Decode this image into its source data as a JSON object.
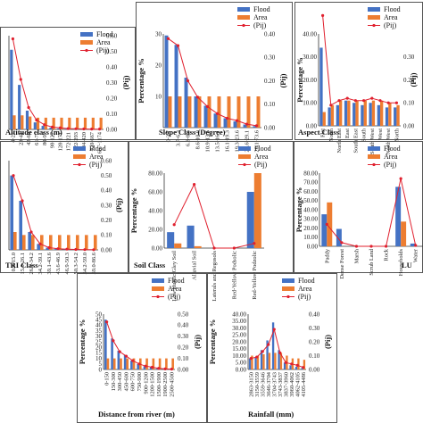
{
  "colors": {
    "flood": "#4472C4",
    "area": "#ED7D31",
    "pij": "#E0202E"
  },
  "chart_data": [
    {
      "type": "bar",
      "title": "",
      "xlabel": "Altitude class (m)",
      "ylabel": "",
      "y2label": "(Pij)",
      "legend": [
        "Flood",
        "Area",
        "(Pij)"
      ],
      "legend_position": "top-right",
      "ylim": [
        0,
        80
      ],
      "y2lim": [
        0,
        0.6
      ],
      "yticks": [
        "",
        "",
        "",
        "",
        ""
      ],
      "y2ticks": [
        "0.00",
        "0.10",
        "0.20",
        "0.30",
        "0.40",
        "0.50",
        "0.60"
      ],
      "categories": [
        "4-22",
        "23-41",
        "42-60",
        "61-79",
        "80-97",
        "98-127",
        "128-171",
        "172-221",
        "222-293",
        "294-420",
        "420-667",
        "667-1174"
      ],
      "series": [
        {
          "name": "Flood",
          "values": [
            68,
            38,
            16,
            6,
            3,
            1.5,
            0.8,
            0.5,
            0.3,
            0.2,
            0.1,
            0.1
          ]
        },
        {
          "name": "Area",
          "values": [
            12,
            12,
            11,
            10,
            10,
            10,
            10,
            10,
            10,
            10,
            10,
            10
          ]
        },
        {
          "name": "(Pij)",
          "values": [
            0.58,
            0.32,
            0.14,
            0.06,
            0.03,
            0.015,
            0.01,
            0.005,
            0.004,
            0.003,
            0.002,
            0.002
          ]
        }
      ]
    },
    {
      "type": "bar",
      "title": "",
      "xlabel": "Slope Class (Degree)",
      "ylabel": "Percentage %",
      "y2label": "(Pij)",
      "legend": [
        "Flood",
        "Area",
        "(Pij)"
      ],
      "legend_position": "top-right",
      "ylim": [
        0,
        30
      ],
      "y2lim": [
        0,
        0.4
      ],
      "yticks": [
        "",
        "10",
        "20",
        "30"
      ],
      "y2ticks": [
        "0.00",
        "0.10",
        "0.20",
        "0.30",
        "0.40"
      ],
      "categories": [
        "0-3.7",
        "3.7-6.3",
        "6.3-8.6",
        "8.6-10.9",
        "10.9-13.5",
        "13.5-16.1",
        "16.1-19.3",
        "19.3-23.6",
        "23.6-29.1",
        "29.1-73.6"
      ],
      "series": [
        {
          "name": "Flood",
          "values": [
            29.5,
            26.5,
            16,
            10,
            7,
            4.5,
            3,
            2,
            1,
            0.5
          ]
        },
        {
          "name": "Area",
          "values": [
            10,
            10,
            10,
            10,
            10,
            10,
            10,
            10,
            10,
            10
          ]
        },
        {
          "name": "(Pij)",
          "values": [
            0.38,
            0.35,
            0.2,
            0.13,
            0.09,
            0.06,
            0.04,
            0.03,
            0.015,
            0.008
          ]
        }
      ]
    },
    {
      "type": "bar",
      "title": "",
      "xlabel": "Aspect Class",
      "ylabel": "Percentage %",
      "y2label": "(Pij)",
      "legend": [
        "Flood",
        "Area",
        "(Pij)"
      ],
      "legend_position": "top-right",
      "ylim": [
        0,
        40
      ],
      "y2lim": [
        0,
        0.4
      ],
      "yticks": [
        "0.00",
        "10.00",
        "20.00",
        "30.00",
        "40.00"
      ],
      "y2ticks": [
        "0.00",
        "0.10",
        "0.20",
        "0.30"
      ],
      "categories": [
        "Flat",
        "North",
        "North East",
        "East",
        "South East",
        "South",
        "South West",
        "West",
        "North West",
        "North"
      ],
      "series": [
        {
          "name": "Flood",
          "values": [
            34,
            8,
            9,
            11,
            10,
            9,
            10,
            9,
            8,
            8
          ]
        },
        {
          "name": "Area",
          "values": [
            6,
            9,
            11,
            11,
            11,
            11,
            11,
            11,
            10,
            9
          ]
        },
        {
          "name": "(Pij)",
          "values": [
            0.48,
            0.09,
            0.11,
            0.12,
            0.11,
            0.11,
            0.12,
            0.11,
            0.1,
            0.1
          ]
        }
      ]
    },
    {
      "type": "bar",
      "title": "",
      "xlabel": "TRI Class",
      "ylabel": "",
      "y2label": "(Pij)",
      "legend": [
        "Flood",
        "Area",
        "(Pij)"
      ],
      "legend_position": "top-right",
      "ylim": [
        0,
        60
      ],
      "y2lim": [
        0,
        0.6
      ],
      "yticks": [
        "",
        "",
        "",
        ""
      ],
      "y2ticks": [
        "0.00",
        "0.10",
        "0.20",
        "0.30",
        "0.40",
        "0.50",
        "0.60"
      ],
      "categories": [
        "0.0-15.0",
        "15.0-26.1",
        "26.1-34.2",
        "34.2-39.1",
        "39.1-43.6",
        "43.6-46.9",
        "46.9-50.3",
        "50.3-54.2",
        "54.2-59.0",
        "59.0-86.6"
      ],
      "series": [
        {
          "name": "Flood",
          "values": [
            50,
            33,
            12,
            4,
            1.5,
            0.8,
            0.5,
            0.3,
            0.2,
            0.1
          ]
        },
        {
          "name": "Area",
          "values": [
            12,
            10,
            10,
            10,
            10,
            10,
            10,
            10,
            10,
            10
          ]
        },
        {
          "name": "(Pij)",
          "values": [
            0.5,
            0.33,
            0.12,
            0.04,
            0.015,
            0.008,
            0.005,
            0.003,
            0.002,
            0.001
          ]
        }
      ]
    },
    {
      "type": "bar",
      "title": "",
      "xlabel": "Soil Class",
      "ylabel": "Percentage %",
      "y2label": "",
      "legend": [
        "Flood",
        "Area",
        "(Pij)"
      ],
      "legend_position": "top-right",
      "ylim": [
        0,
        80
      ],
      "y2lim": [
        0,
        0.8
      ],
      "yticks": [
        "0.00",
        "20.00",
        "40.00",
        "60.00",
        "80.00"
      ],
      "y2ticks": [],
      "categories": [
        "Low Humic Gley Soil",
        "Alluvial Soil",
        "Laterals and Regosols",
        "Red-Yellow Podsolic",
        "Red-Yellow Podzolic"
      ],
      "series": [
        {
          "name": "Flood",
          "values": [
            17,
            24,
            0,
            0,
            60
          ]
        },
        {
          "name": "Area",
          "values": [
            5,
            2,
            0,
            0,
            80
          ]
        },
        {
          "name": "(Pij)",
          "values": [
            0.25,
            0.68,
            0,
            0,
            0.05
          ]
        }
      ]
    },
    {
      "type": "bar",
      "title": "",
      "xlabel": "LU",
      "ylabel": "Percentage %",
      "y2label": "",
      "legend": [
        "Flood",
        "Area",
        "(Pij)"
      ],
      "legend_position": "top-right",
      "ylim": [
        0,
        80
      ],
      "y2lim": [
        0,
        0.8
      ],
      "yticks": [
        "0.00",
        "10.00",
        "20.00",
        "30.00",
        "40.00",
        "50.00",
        "60.00",
        "70.00",
        "80.00"
      ],
      "y2ticks": [],
      "categories": [
        "Paddy",
        "Dense Forest",
        "Marsh",
        "Scrub Land",
        "Rock",
        "Households",
        "Water"
      ],
      "series": [
        {
          "name": "Flood",
          "values": [
            35,
            19,
            0,
            0,
            0,
            65,
            3
          ]
        },
        {
          "name": "Area",
          "values": [
            48,
            0,
            0,
            0,
            0,
            27,
            0
          ]
        },
        {
          "name": "(Pij)",
          "values": [
            0.24,
            0.04,
            0,
            0,
            0,
            0.74,
            0.01
          ]
        }
      ]
    },
    {
      "type": "bar",
      "title": "",
      "xlabel": "Distance from river (m)",
      "ylabel": "Percentage %",
      "y2label": "(Pij)",
      "legend": [
        "Flood",
        "Area",
        "(Pij)"
      ],
      "legend_position": "top-right",
      "ylim": [
        0,
        50
      ],
      "y2lim": [
        0,
        0.5
      ],
      "yticks": [
        "0",
        "5",
        "10",
        "15",
        "20",
        "25",
        "30",
        "35",
        "40",
        "45",
        "50"
      ],
      "y2ticks": [
        "0.00",
        "0.10",
        "0.20",
        "0.30",
        "0.40",
        "0.50"
      ],
      "categories": [
        "0-150",
        "150-300",
        "300-450",
        "450-600",
        "600-750",
        "750-900",
        "900-1200",
        "1200-1500",
        "1500-1900",
        "1900-2500",
        "2500-4500"
      ],
      "series": [
        {
          "name": "Flood",
          "values": [
            45,
            28,
            17,
            13,
            8,
            5,
            3,
            2,
            1,
            0.5,
            0.3
          ]
        },
        {
          "name": "Area",
          "values": [
            10,
            10,
            10,
            10,
            10,
            10,
            10,
            10,
            10,
            10,
            10
          ]
        },
        {
          "name": "(Pij)",
          "values": [
            0.43,
            0.26,
            0.16,
            0.12,
            0.08,
            0.05,
            0.03,
            0.02,
            0.01,
            0.005,
            0.003
          ]
        }
      ]
    },
    {
      "type": "bar",
      "title": "",
      "xlabel": "Rainfall (mm)",
      "ylabel": "Percentage %",
      "y2label": "(Pij)",
      "legend": [
        "Flood",
        "Area",
        "(Pij)"
      ],
      "legend_position": "top-right",
      "ylim": [
        0,
        40
      ],
      "y2lim": [
        0,
        0.4
      ],
      "yticks": [
        "0.00",
        "5.00",
        "10.00",
        "15.00",
        "20.00",
        "25.00",
        "30.00",
        "35.00",
        "40.00"
      ],
      "y2ticks": [
        "0.00",
        "0.10",
        "0.20",
        "0.30",
        "0.40"
      ],
      "categories": [
        "2863-3150",
        "3150-3559",
        "3559-3646",
        "3646-3704",
        "3704-3743",
        "3743-3837",
        "3837-3960",
        "3960-4062",
        "4062-4105",
        "4105-4486"
      ],
      "series": [
        {
          "name": "Flood",
          "values": [
            8,
            9,
            14,
            21,
            34,
            14,
            5,
            3,
            2,
            1
          ]
        },
        {
          "name": "Area",
          "values": [
            10,
            10,
            11,
            12,
            12,
            12,
            10,
            8,
            8,
            7
          ]
        },
        {
          "name": "(Pij)",
          "values": [
            0.08,
            0.09,
            0.13,
            0.18,
            0.29,
            0.12,
            0.05,
            0.04,
            0.03,
            0.015
          ]
        }
      ]
    }
  ]
}
